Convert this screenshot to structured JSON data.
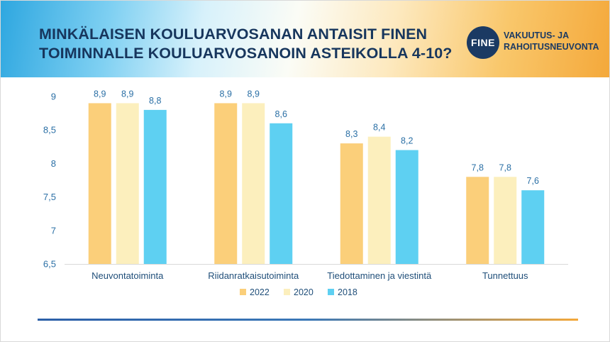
{
  "header": {
    "title_line1": "MINKÄLAISEN KOULUARVOSANAN ANTAISIT FINEN",
    "title_line2": "TOIMINNALLE KOULUARVOSANOIN ASTEIKOLLA 4-10?"
  },
  "logo": {
    "mark": "FINE",
    "line1": "VAKUUTUS- JA",
    "line2": "RAHOITUSNEUVONTA"
  },
  "colors": {
    "s2022": "#fbcf7a",
    "s2020": "#fcefbd",
    "s2018": "#5ed0f2",
    "axis_text": "#2a6fa5",
    "data_label": "#2a6fa5",
    "category_text": "#1f4e79"
  },
  "chart_data": {
    "type": "bar",
    "title": "MINKÄLAISEN KOULUARVOSANAN ANTAISIT FINEN TOIMINNALLE KOULUARVOSANOIN ASTEIKOLLA 4-10?",
    "categories": [
      "Neuvontatoiminta",
      "Riidanratkaisutoiminta",
      "Tiedottaminen ja viestintä",
      "Tunnettuus"
    ],
    "series": [
      {
        "name": "2022",
        "values": [
          8.9,
          8.9,
          8.3,
          7.8
        ],
        "labels": [
          "8,9",
          "8,9",
          "8,3",
          "7,8"
        ]
      },
      {
        "name": "2020",
        "values": [
          8.9,
          8.9,
          8.4,
          7.8
        ],
        "labels": [
          "8,9",
          "8,9",
          "8,4",
          "7,8"
        ]
      },
      {
        "name": "2018",
        "values": [
          8.8,
          8.6,
          8.2,
          7.6
        ],
        "labels": [
          "8,8",
          "8,6",
          "8,2",
          "7,6"
        ]
      }
    ],
    "ylim": [
      6.5,
      9
    ],
    "yticks": [
      6.5,
      7,
      7.5,
      8,
      8.5,
      9
    ],
    "ytick_labels": [
      "6,5",
      "7",
      "7,5",
      "8",
      "8,5",
      "9"
    ],
    "xlabel": "",
    "ylabel": "",
    "grid": false,
    "legend_position": "bottom-center"
  }
}
